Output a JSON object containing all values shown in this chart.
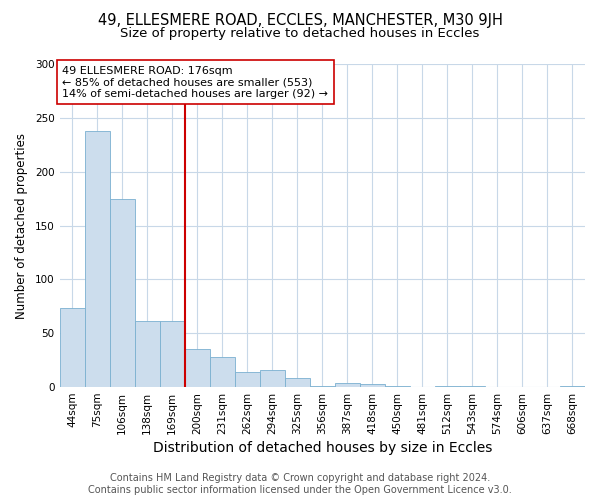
{
  "title1": "49, ELLESMERE ROAD, ECCLES, MANCHESTER, M30 9JH",
  "title2": "Size of property relative to detached houses in Eccles",
  "xlabel": "Distribution of detached houses by size in Eccles",
  "ylabel": "Number of detached properties",
  "categories": [
    "44sqm",
    "75sqm",
    "106sqm",
    "138sqm",
    "169sqm",
    "200sqm",
    "231sqm",
    "262sqm",
    "294sqm",
    "325sqm",
    "356sqm",
    "387sqm",
    "418sqm",
    "450sqm",
    "481sqm",
    "512sqm",
    "543sqm",
    "574sqm",
    "606sqm",
    "637sqm",
    "668sqm"
  ],
  "values": [
    73,
    238,
    175,
    61,
    61,
    35,
    28,
    14,
    16,
    8,
    1,
    4,
    3,
    1,
    0,
    1,
    1,
    0,
    0,
    0,
    1
  ],
  "bar_color": "#ccdded",
  "bar_edge_color": "#7ab0d0",
  "vline_x": 4.5,
  "vline_color": "#cc0000",
  "annotation_text": "49 ELLESMERE ROAD: 176sqm\n← 85% of detached houses are smaller (553)\n14% of semi-detached houses are larger (92) →",
  "annotation_box_facecolor": "#ffffff",
  "annotation_box_edgecolor": "#cc0000",
  "ylim": [
    0,
    300
  ],
  "yticks": [
    0,
    50,
    100,
    150,
    200,
    250,
    300
  ],
  "bg_color": "#ffffff",
  "plot_bg_color": "#ffffff",
  "grid_color": "#c8d8e8",
  "title1_fontsize": 10.5,
  "title2_fontsize": 9.5,
  "xlabel_fontsize": 10,
  "ylabel_fontsize": 8.5,
  "tick_fontsize": 7.5,
  "annotation_fontsize": 8,
  "footer_fontsize": 7,
  "footer": "Contains HM Land Registry data © Crown copyright and database right 2024.\nContains public sector information licensed under the Open Government Licence v3.0."
}
